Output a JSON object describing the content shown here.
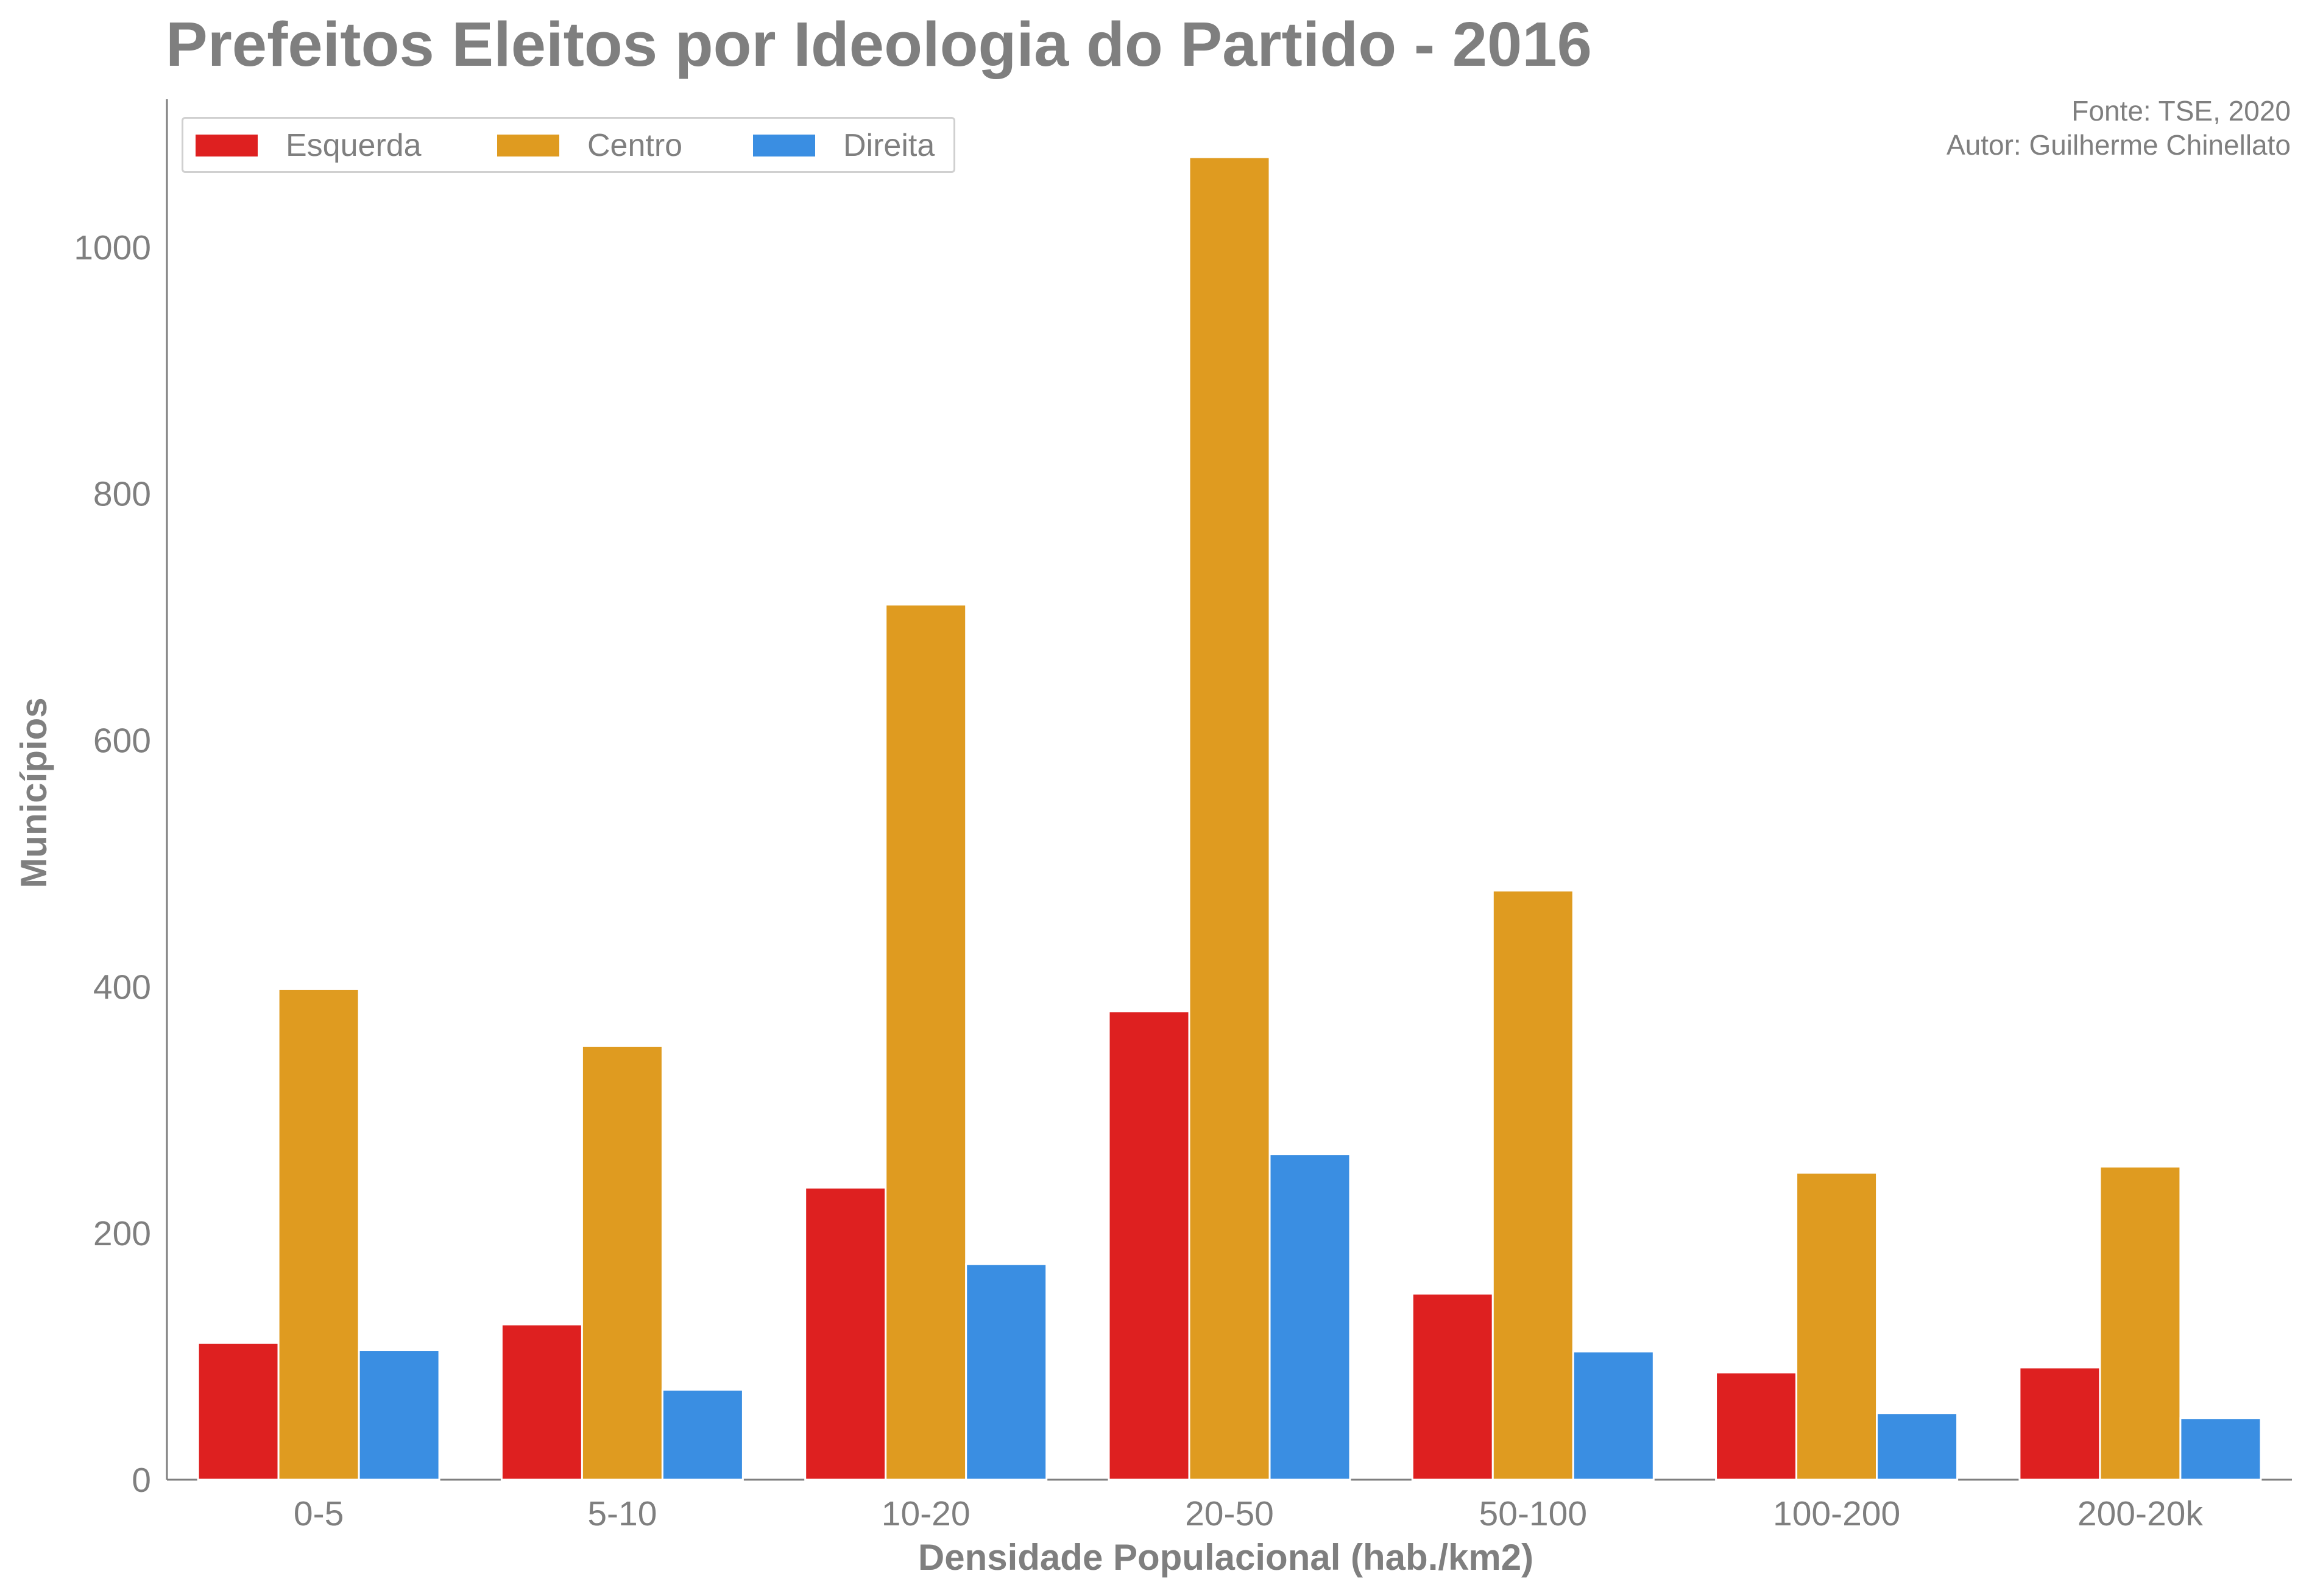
{
  "chart_data": {
    "type": "bar",
    "title": "Prefeitos Eleitos por Ideologia do Partido - 2016",
    "xlabel": "Densidade Populacional (hab./km2)",
    "ylabel": "Municípios",
    "categories": [
      "0-5",
      "5-10",
      "10-20",
      "20-50",
      "50-100",
      "100-200",
      "200-20k"
    ],
    "series": [
      {
        "name": "Esquerda",
        "color": "#de2020",
        "values": [
          111,
          126,
          237,
          380,
          151,
          87,
          91
        ]
      },
      {
        "name": "Centro",
        "color": "#df9b20",
        "values": [
          398,
          352,
          710,
          1073,
          478,
          249,
          254
        ]
      },
      {
        "name": "Direita",
        "color": "#3a8ee2",
        "values": [
          105,
          73,
          175,
          264,
          104,
          54,
          50
        ]
      }
    ],
    "ylim": [
      0,
      1120
    ],
    "yticks": [
      0,
      200,
      400,
      600,
      800,
      1000
    ],
    "grid": false,
    "legend_position": "top-left",
    "annotations": [
      "Fonte: TSE, 2020",
      "Autor: Guilherme Chinellato"
    ]
  }
}
